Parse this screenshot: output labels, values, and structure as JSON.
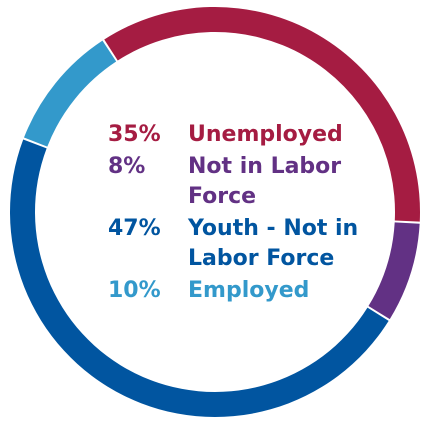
{
  "chart_data": {
    "type": "pie",
    "series": [
      {
        "name": "",
        "values": [
          35,
          8,
          47,
          10
        ],
        "categories": [
          "Unemployed",
          "Not in Labor Force",
          "Youth - Not in Labor Force",
          "Employed"
        ]
      }
    ],
    "categories": [
      "Unemployed",
      "Not in Labor Force",
      "Youth - Not in Labor Force",
      "Employed"
    ],
    "values": [
      35,
      8,
      47,
      10
    ],
    "colors": [
      "#A51C42",
      "#623184",
      "#0155A0",
      "#3399CB"
    ],
    "title": "",
    "donut": true
  },
  "legend": {
    "items": [
      {
        "pct": "35%",
        "label": "Unemployed",
        "color": "#A51C42"
      },
      {
        "pct": "8%",
        "label": "Not in Labor Force",
        "color": "#623184"
      },
      {
        "pct": "47%",
        "label": "Youth - Not in Labor Force",
        "color": "#0155A0"
      },
      {
        "pct": "10%",
        "label": "Employed",
        "color": "#3399CB"
      }
    ]
  }
}
